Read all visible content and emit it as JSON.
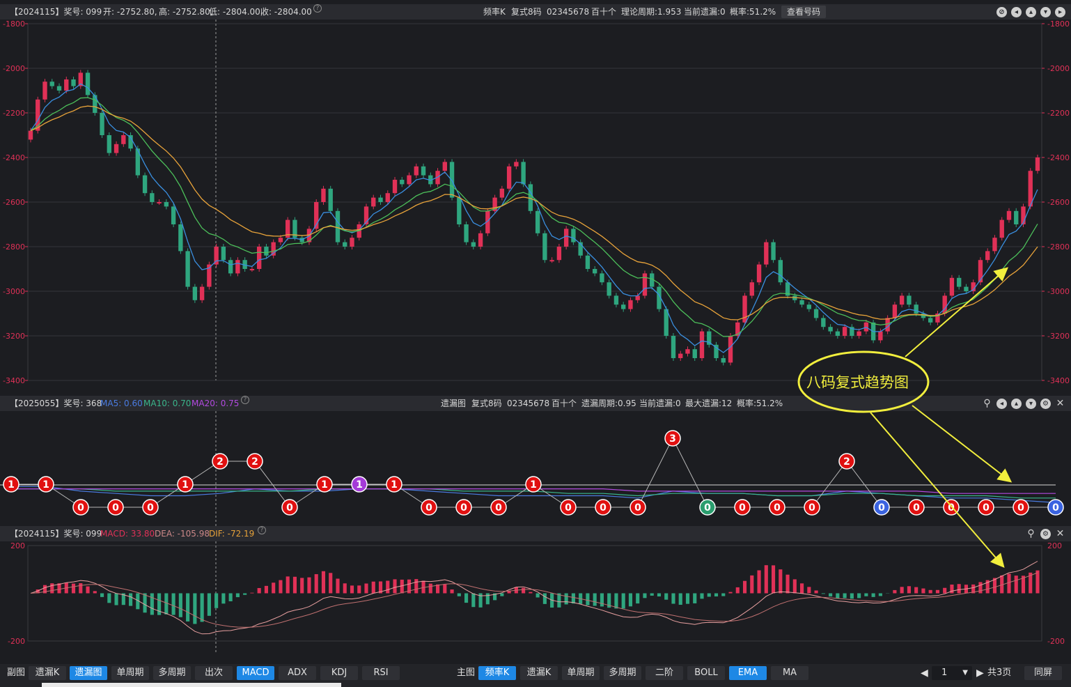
{
  "top_panel": {
    "title": "【2024115】奖号: 099",
    "open": "开: -2752.80,",
    "high": "高: -2752.80,",
    "low": "低: -2804.00,",
    "close": "收: -2804.00",
    "chart_name": "频率K",
    "mode": "复式8码",
    "code": "02345678",
    "position": "百十个",
    "period": "理论周期:1.953",
    "missing": "当前遗漏:0",
    "probability": "概率:51.2%",
    "view_button": "查看号码",
    "y_ticks": [
      "-1800",
      "-2000",
      "-2200",
      "-2400",
      "-2600",
      "-2800",
      "-3000",
      "-3200",
      "-3400"
    ]
  },
  "mid_panel": {
    "title": "【2025055】奖号: 368",
    "ma5": "MA5: 0.60",
    "ma10": "MA10: 0.70",
    "ma20": "MA20: 0.75",
    "chart_name": "遗漏图",
    "mode": "复式8码",
    "code": "02345678",
    "position": "百十个",
    "period": "遗漏周期:0.95",
    "missing": "当前遗漏:0",
    "max_missing": "最大遗漏:12",
    "probability": "概率:51.2%"
  },
  "bottom_panel": {
    "title": "【2024115】奖号: 099",
    "macd": "MACD: 33.80",
    "dea": "DEA: -105.98",
    "dif": "DIF: -72.19",
    "y_ticks": [
      "200",
      "-200"
    ]
  },
  "annotation": {
    "text": "八码复式趋势图"
  },
  "toolbar": {
    "left_label": "副图",
    "left_tabs": [
      "遗漏K",
      "遗漏图",
      "单周期",
      "多周期",
      "出次",
      "MACD",
      "ADX",
      "KDJ",
      "RSI"
    ],
    "main_label": "主图",
    "main_tabs": [
      "频率K",
      "遗漏K",
      "单周期",
      "多周期",
      "二阶",
      "BOLL",
      "EMA",
      "MA"
    ],
    "page_value": "1",
    "page_total": "共3页",
    "sync_button": "同屏"
  },
  "colors": {
    "up": "#e03157",
    "down": "#2fa67f",
    "ma_blue": "#3a8fe0",
    "ma_green": "#4cbf5a",
    "ma_orange": "#e8a33a",
    "badge_red": "#e01010",
    "badge_green": "#2a9d6e",
    "badge_blue": "#3a63e0",
    "badge_purple": "#a43ad8",
    "annotation": "#f1ee3d"
  },
  "chart_data": [
    {
      "type": "candlestick",
      "title": "频率K",
      "ylim": [
        -3400,
        -1800
      ],
      "close": [
        -2280,
        -2140,
        -2060,
        -2080,
        -2100,
        -2050,
        -2080,
        -2020,
        -2120,
        -2200,
        -2300,
        -2380,
        -2340,
        -2300,
        -2360,
        -2480,
        -2560,
        -2600,
        -2600,
        -2620,
        -2700,
        -2820,
        -2980,
        -3040,
        -2980,
        -2880,
        -2800,
        -2860,
        -2920,
        -2860,
        -2900,
        -2900,
        -2800,
        -2840,
        -2780,
        -2760,
        -2680,
        -2760,
        -2780,
        -2720,
        -2600,
        -2540,
        -2640,
        -2780,
        -2800,
        -2760,
        -2700,
        -2620,
        -2580,
        -2600,
        -2560,
        -2500,
        -2520,
        -2480,
        -2440,
        -2480,
        -2520,
        -2460,
        -2420,
        -2580,
        -2700,
        -2780,
        -2800,
        -2740,
        -2640,
        -2580,
        -2540,
        -2440,
        -2420,
        -2520,
        -2640,
        -2740,
        -2860,
        -2860,
        -2800,
        -2720,
        -2780,
        -2840,
        -2900,
        -2920,
        -2960,
        -3020,
        -3060,
        -3080,
        -3040,
        -3020,
        -2920,
        -2980,
        -3080,
        -3200,
        -3300,
        -3280,
        -3260,
        -3300,
        -3180,
        -3240,
        -3300,
        -3320,
        -3200,
        -3140,
        -3020,
        -2960,
        -2880,
        -2780,
        -2860,
        -2960,
        -3020,
        -3040,
        -3060,
        -3080,
        -3120,
        -3160,
        -3180,
        -3200,
        -3160,
        -3200,
        -3180,
        -3140,
        -3220,
        -3180,
        -3120,
        -3060,
        -3020,
        -3060,
        -3100,
        -3120,
        -3140,
        -3100,
        -3020,
        -2940,
        -2980,
        -3000,
        -2960,
        -2860,
        -2820,
        -2760,
        -2680,
        -2640,
        -2700,
        -2620,
        -2460,
        -2400
      ]
    },
    {
      "type": "line",
      "title": "遗漏图",
      "values": [
        1,
        1,
        0,
        0,
        0,
        1,
        2,
        2,
        0,
        1,
        1,
        1,
        0,
        0,
        0,
        1,
        0,
        0,
        0,
        3,
        0,
        0,
        0,
        0,
        2,
        0,
        0,
        0,
        0,
        0,
        0
      ],
      "series": [
        {
          "name": "MA5",
          "values": [
            0.9,
            0.9,
            0.7,
            0.6,
            0.5,
            0.5,
            0.6,
            0.8,
            0.7,
            0.7,
            0.8,
            0.8,
            0.7,
            0.6,
            0.5,
            0.5,
            0.5,
            0.5,
            0.4,
            0.7,
            0.6,
            0.6,
            0.5,
            0.5,
            0.7,
            0.6,
            0.5,
            0.4,
            0.4,
            0.3,
            0.2
          ]
        },
        {
          "name": "MA10",
          "values": [
            0.8,
            0.8,
            0.8,
            0.7,
            0.7,
            0.7,
            0.7,
            0.7,
            0.7,
            0.8,
            0.8,
            0.8,
            0.8,
            0.7,
            0.7,
            0.7,
            0.6,
            0.6,
            0.5,
            0.6,
            0.6,
            0.6,
            0.5,
            0.5,
            0.6,
            0.6,
            0.5,
            0.5,
            0.5,
            0.4,
            0.4
          ]
        },
        {
          "name": "MA20",
          "values": [
            0.8,
            0.8,
            0.8,
            0.8,
            0.8,
            0.8,
            0.8,
            0.8,
            0.8,
            0.8,
            0.8,
            0.8,
            0.8,
            0.8,
            0.8,
            0.8,
            0.8,
            0.8,
            0.7,
            0.7,
            0.7,
            0.7,
            0.7,
            0.7,
            0.7,
            0.7,
            0.7,
            0.6,
            0.6,
            0.6,
            0.6
          ]
        }
      ]
    },
    {
      "type": "bar",
      "title": "MACD",
      "ylim": [
        -200,
        200
      ]
    }
  ]
}
